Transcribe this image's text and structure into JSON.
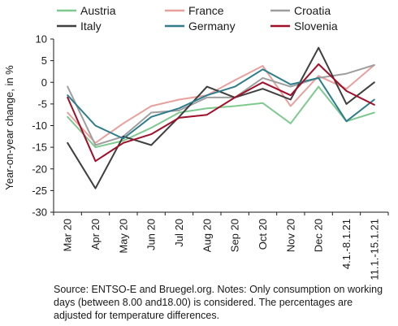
{
  "chart_data": {
    "type": "line",
    "ylabel": "Year-on-year change, in %",
    "xlabel": "",
    "ylim": [
      -30,
      10
    ],
    "yticks": [
      10,
      5,
      0,
      -5,
      -10,
      -15,
      -20,
      -25,
      -30
    ],
    "grid": false,
    "legend_position": "top",
    "categories": [
      "Mar 20",
      "Apr 20",
      "May 20",
      "Jun 20",
      "Jul 20",
      "Aug 20",
      "Sep 20",
      "Oct 20",
      "Nov 20",
      "Dec 20",
      "4.1.-8.1.21",
      "11.1.-15.1.21"
    ],
    "series": [
      {
        "name": "Austria",
        "color": "#7fc98f",
        "values": [
          -8.0,
          -15.0,
          -13.5,
          -10.5,
          -7.0,
          -6.0,
          -5.5,
          -4.8,
          -9.5,
          -1.0,
          -9.0,
          -7.0
        ]
      },
      {
        "name": "France",
        "color": "#e8a09c",
        "values": [
          -7.0,
          -14.0,
          -9.5,
          -5.5,
          -4.0,
          -3.0,
          0.5,
          3.8,
          -5.5,
          1.5,
          -1.5,
          4.0
        ]
      },
      {
        "name": "Croatia",
        "color": "#9e9e9e",
        "values": [
          -1.0,
          -14.5,
          -12.5,
          -7.0,
          -6.5,
          -3.5,
          -3.5,
          1.0,
          -1.0,
          1.0,
          2.0,
          4.0
        ]
      },
      {
        "name": "Italy",
        "color": "#3f3f3f",
        "values": [
          -14.0,
          -24.5,
          -12.5,
          -14.5,
          -8.0,
          -1.0,
          -3.5,
          -1.5,
          -4.0,
          8.0,
          -5.0,
          0.0
        ]
      },
      {
        "name": "Germany",
        "color": "#2e7d8c",
        "values": [
          -3.0,
          -10.0,
          -13.0,
          -8.0,
          -6.0,
          -3.0,
          -1.0,
          3.0,
          -0.5,
          1.0,
          -9.0,
          -4.0
        ]
      },
      {
        "name": "Slovenia",
        "color": "#a0102a",
        "values": [
          -3.5,
          -18.2,
          -14.0,
          -12.0,
          -8.2,
          -7.5,
          -3.5,
          0.0,
          -3.0,
          4.2,
          -2.0,
          -5.2
        ]
      }
    ]
  },
  "footnote": "Source: ENTSO-E and Bruegel.org. Notes: Only consumption on working days (between 8.00 and18.00) is considered. The percentages are adjusted for temperature differences."
}
